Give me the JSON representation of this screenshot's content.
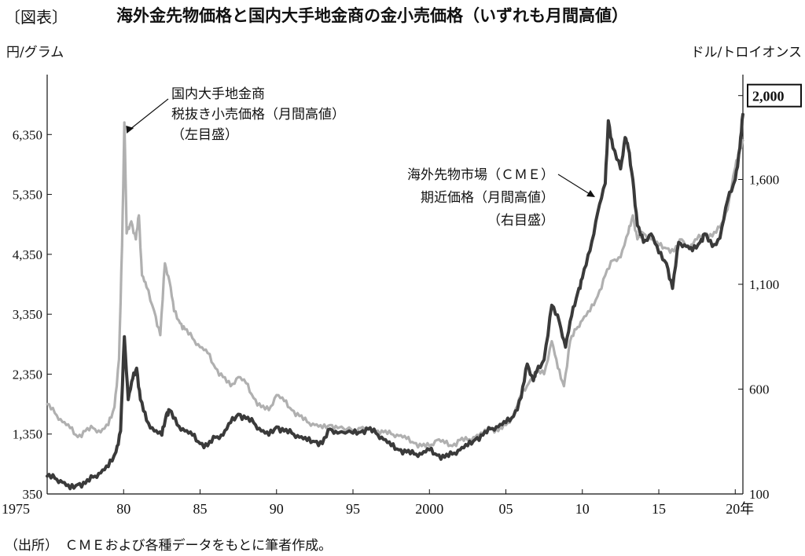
{
  "header": {
    "bracket": "〔図表〕",
    "title": "海外金先物価格と国内大手地金商の金小売価格（いずれも月間高値）"
  },
  "source_note": "（出所）　ＣＭＥおよび各種データをもとに筆者作成。",
  "chart_data": {
    "type": "line",
    "left_axis": {
      "unit_label": "円/グラム",
      "range": [
        350,
        7350
      ],
      "ticks": [
        350,
        1350,
        2350,
        3350,
        4350,
        5350,
        6350
      ],
      "tick_labels": [
        "350",
        "1,350",
        "2,350",
        "3,350",
        "4,350",
        "5,350",
        "6,350"
      ]
    },
    "right_axis": {
      "unit_label": "ドル/トロイオンス",
      "range": [
        100,
        2100
      ],
      "ticks": [
        100,
        600,
        1100,
        1600,
        2000
      ],
      "tick_labels": [
        "100",
        "600",
        "1,100",
        "1,600",
        "2,000"
      ],
      "boxed_tick": "2,000"
    },
    "x_axis": {
      "range": [
        1975,
        2020.5
      ],
      "ticks": [
        1975,
        1980,
        1985,
        1990,
        1995,
        2000,
        2005,
        2010,
        2015,
        2020
      ],
      "tick_labels": [
        "1975",
        "80",
        "85",
        "90",
        "95",
        "2000",
        "05",
        "10",
        "15",
        "20年"
      ]
    },
    "grid": false,
    "series": [
      {
        "name": "国内大手地金商 税抜き小売価格（月間高値）（左目盛）",
        "axis": "left",
        "color": "#b0b0b0",
        "label_lines": [
          "国内大手地金商",
          "税抜き小売価格（月間高値）",
          "（左目盛）"
        ],
        "points": [
          [
            1975.0,
            1850
          ],
          [
            1975.5,
            1700
          ],
          [
            1976.0,
            1550
          ],
          [
            1976.5,
            1450
          ],
          [
            1977.0,
            1300
          ],
          [
            1977.5,
            1400
          ],
          [
            1978.0,
            1450
          ],
          [
            1978.5,
            1380
          ],
          [
            1979.0,
            1500
          ],
          [
            1979.4,
            1800
          ],
          [
            1979.7,
            2600
          ],
          [
            1979.9,
            4500
          ],
          [
            1980.05,
            6550
          ],
          [
            1980.2,
            4700
          ],
          [
            1980.5,
            4900
          ],
          [
            1980.8,
            4600
          ],
          [
            1981.0,
            5000
          ],
          [
            1981.2,
            4000
          ],
          [
            1981.5,
            3800
          ],
          [
            1982.0,
            3400
          ],
          [
            1982.4,
            3000
          ],
          [
            1982.7,
            4200
          ],
          [
            1983.0,
            3900
          ],
          [
            1983.3,
            3400
          ],
          [
            1983.7,
            3200
          ],
          [
            1984.0,
            3100
          ],
          [
            1984.5,
            2950
          ],
          [
            1985.0,
            2800
          ],
          [
            1985.5,
            2700
          ],
          [
            1986.0,
            2450
          ],
          [
            1986.5,
            2300
          ],
          [
            1987.0,
            2150
          ],
          [
            1987.5,
            2300
          ],
          [
            1988.0,
            2200
          ],
          [
            1988.5,
            1950
          ],
          [
            1989.0,
            1800
          ],
          [
            1989.5,
            1750
          ],
          [
            1990.0,
            2000
          ],
          [
            1990.5,
            1900
          ],
          [
            1991.0,
            1750
          ],
          [
            1991.5,
            1650
          ],
          [
            1992.0,
            1550
          ],
          [
            1992.5,
            1500
          ],
          [
            1993.0,
            1450
          ],
          [
            1993.5,
            1500
          ],
          [
            1994.0,
            1450
          ],
          [
            1995.0,
            1400
          ],
          [
            1995.5,
            1450
          ],
          [
            1996.0,
            1420
          ],
          [
            1996.5,
            1400
          ],
          [
            1997.0,
            1380
          ],
          [
            1997.5,
            1350
          ],
          [
            1998.0,
            1320
          ],
          [
            1998.5,
            1270
          ],
          [
            1999.0,
            1200
          ],
          [
            1999.5,
            1150
          ],
          [
            2000.0,
            1150
          ],
          [
            2000.5,
            1250
          ],
          [
            2001.0,
            1200
          ],
          [
            2001.5,
            1150
          ],
          [
            2002.0,
            1250
          ],
          [
            2002.5,
            1250
          ],
          [
            2003.0,
            1300
          ],
          [
            2003.5,
            1350
          ],
          [
            2004.0,
            1450
          ],
          [
            2004.5,
            1400
          ],
          [
            2005.0,
            1500
          ],
          [
            2005.5,
            1650
          ],
          [
            2006.0,
            2000
          ],
          [
            2006.5,
            2200
          ],
          [
            2007.0,
            2400
          ],
          [
            2007.5,
            2350
          ],
          [
            2008.0,
            2900
          ],
          [
            2008.4,
            2450
          ],
          [
            2008.8,
            2150
          ],
          [
            2009.2,
            2900
          ],
          [
            2009.6,
            3100
          ],
          [
            2010.0,
            3250
          ],
          [
            2010.5,
            3400
          ],
          [
            2011.0,
            3650
          ],
          [
            2011.5,
            4000
          ],
          [
            2012.0,
            4250
          ],
          [
            2012.5,
            4300
          ],
          [
            2013.0,
            4700
          ],
          [
            2013.3,
            5000
          ],
          [
            2013.6,
            4600
          ],
          [
            2014.0,
            4700
          ],
          [
            2014.5,
            4600
          ],
          [
            2015.0,
            4500
          ],
          [
            2015.5,
            4450
          ],
          [
            2016.0,
            4400
          ],
          [
            2016.5,
            4600
          ],
          [
            2017.0,
            4450
          ],
          [
            2017.5,
            4600
          ],
          [
            2018.0,
            4700
          ],
          [
            2018.5,
            4650
          ],
          [
            2019.0,
            4800
          ],
          [
            2019.5,
            5100
          ],
          [
            2020.0,
            5800
          ],
          [
            2020.3,
            6100
          ],
          [
            2020.5,
            6250
          ]
        ]
      },
      {
        "name": "海外先物市場（ＣＭＥ）期近価格（月間高値）（右目盛）",
        "axis": "right",
        "color": "#3a3a3a",
        "label_lines": [
          "海外先物市場（ＣＭＥ）",
          "期近価格（月間高値）",
          "（右目盛）"
        ],
        "points": [
          [
            1975.0,
            185
          ],
          [
            1975.5,
            175
          ],
          [
            1976.0,
            155
          ],
          [
            1976.5,
            125
          ],
          [
            1977.0,
            145
          ],
          [
            1977.5,
            150
          ],
          [
            1978.0,
            180
          ],
          [
            1978.5,
            200
          ],
          [
            1979.0,
            230
          ],
          [
            1979.5,
            300
          ],
          [
            1979.8,
            400
          ],
          [
            1980.05,
            850
          ],
          [
            1980.3,
            550
          ],
          [
            1980.6,
            650
          ],
          [
            1980.85,
            700
          ],
          [
            1981.1,
            550
          ],
          [
            1981.5,
            450
          ],
          [
            1982.0,
            400
          ],
          [
            1982.5,
            380
          ],
          [
            1982.8,
            480
          ],
          [
            1983.0,
            500
          ],
          [
            1983.5,
            430
          ],
          [
            1984.0,
            400
          ],
          [
            1984.5,
            380
          ],
          [
            1985.0,
            340
          ],
          [
            1985.5,
            330
          ],
          [
            1986.0,
            370
          ],
          [
            1986.5,
            380
          ],
          [
            1987.0,
            440
          ],
          [
            1987.5,
            480
          ],
          [
            1988.0,
            460
          ],
          [
            1988.5,
            440
          ],
          [
            1989.0,
            400
          ],
          [
            1989.5,
            380
          ],
          [
            1990.0,
            420
          ],
          [
            1990.5,
            400
          ],
          [
            1991.0,
            390
          ],
          [
            1991.5,
            370
          ],
          [
            1992.0,
            355
          ],
          [
            1992.5,
            350
          ],
          [
            1993.0,
            340
          ],
          [
            1993.5,
            410
          ],
          [
            1994.0,
            390
          ],
          [
            1995.0,
            390
          ],
          [
            1995.5,
            395
          ],
          [
            1996.0,
            410
          ],
          [
            1996.5,
            390
          ],
          [
            1997.0,
            360
          ],
          [
            1997.5,
            330
          ],
          [
            1998.0,
            310
          ],
          [
            1998.5,
            300
          ],
          [
            1999.0,
            290
          ],
          [
            1999.5,
            290
          ],
          [
            2000.0,
            310
          ],
          [
            2000.5,
            285
          ],
          [
            2001.0,
            275
          ],
          [
            2001.5,
            290
          ],
          [
            2002.0,
            310
          ],
          [
            2002.5,
            330
          ],
          [
            2003.0,
            360
          ],
          [
            2003.5,
            380
          ],
          [
            2004.0,
            410
          ],
          [
            2004.5,
            420
          ],
          [
            2005.0,
            440
          ],
          [
            2005.5,
            470
          ],
          [
            2006.0,
            560
          ],
          [
            2006.4,
            720
          ],
          [
            2006.8,
            640
          ],
          [
            2007.0,
            680
          ],
          [
            2007.5,
            740
          ],
          [
            2008.0,
            1000
          ],
          [
            2008.5,
            920
          ],
          [
            2008.9,
            800
          ],
          [
            2009.3,
            950
          ],
          [
            2009.7,
            1060
          ],
          [
            2010.0,
            1130
          ],
          [
            2010.5,
            1260
          ],
          [
            2011.0,
            1440
          ],
          [
            2011.5,
            1580
          ],
          [
            2011.7,
            1880
          ],
          [
            2012.0,
            1750
          ],
          [
            2012.5,
            1650
          ],
          [
            2012.8,
            1800
          ],
          [
            2013.0,
            1750
          ],
          [
            2013.3,
            1600
          ],
          [
            2013.6,
            1380
          ],
          [
            2014.0,
            1300
          ],
          [
            2014.5,
            1340
          ],
          [
            2015.0,
            1250
          ],
          [
            2015.5,
            1200
          ],
          [
            2015.9,
            1080
          ],
          [
            2016.3,
            1300
          ],
          [
            2016.8,
            1280
          ],
          [
            2017.2,
            1260
          ],
          [
            2017.7,
            1300
          ],
          [
            2018.0,
            1340
          ],
          [
            2018.5,
            1280
          ],
          [
            2019.0,
            1320
          ],
          [
            2019.5,
            1500
          ],
          [
            2020.0,
            1600
          ],
          [
            2020.3,
            1750
          ],
          [
            2020.5,
            1910
          ]
        ]
      }
    ]
  }
}
